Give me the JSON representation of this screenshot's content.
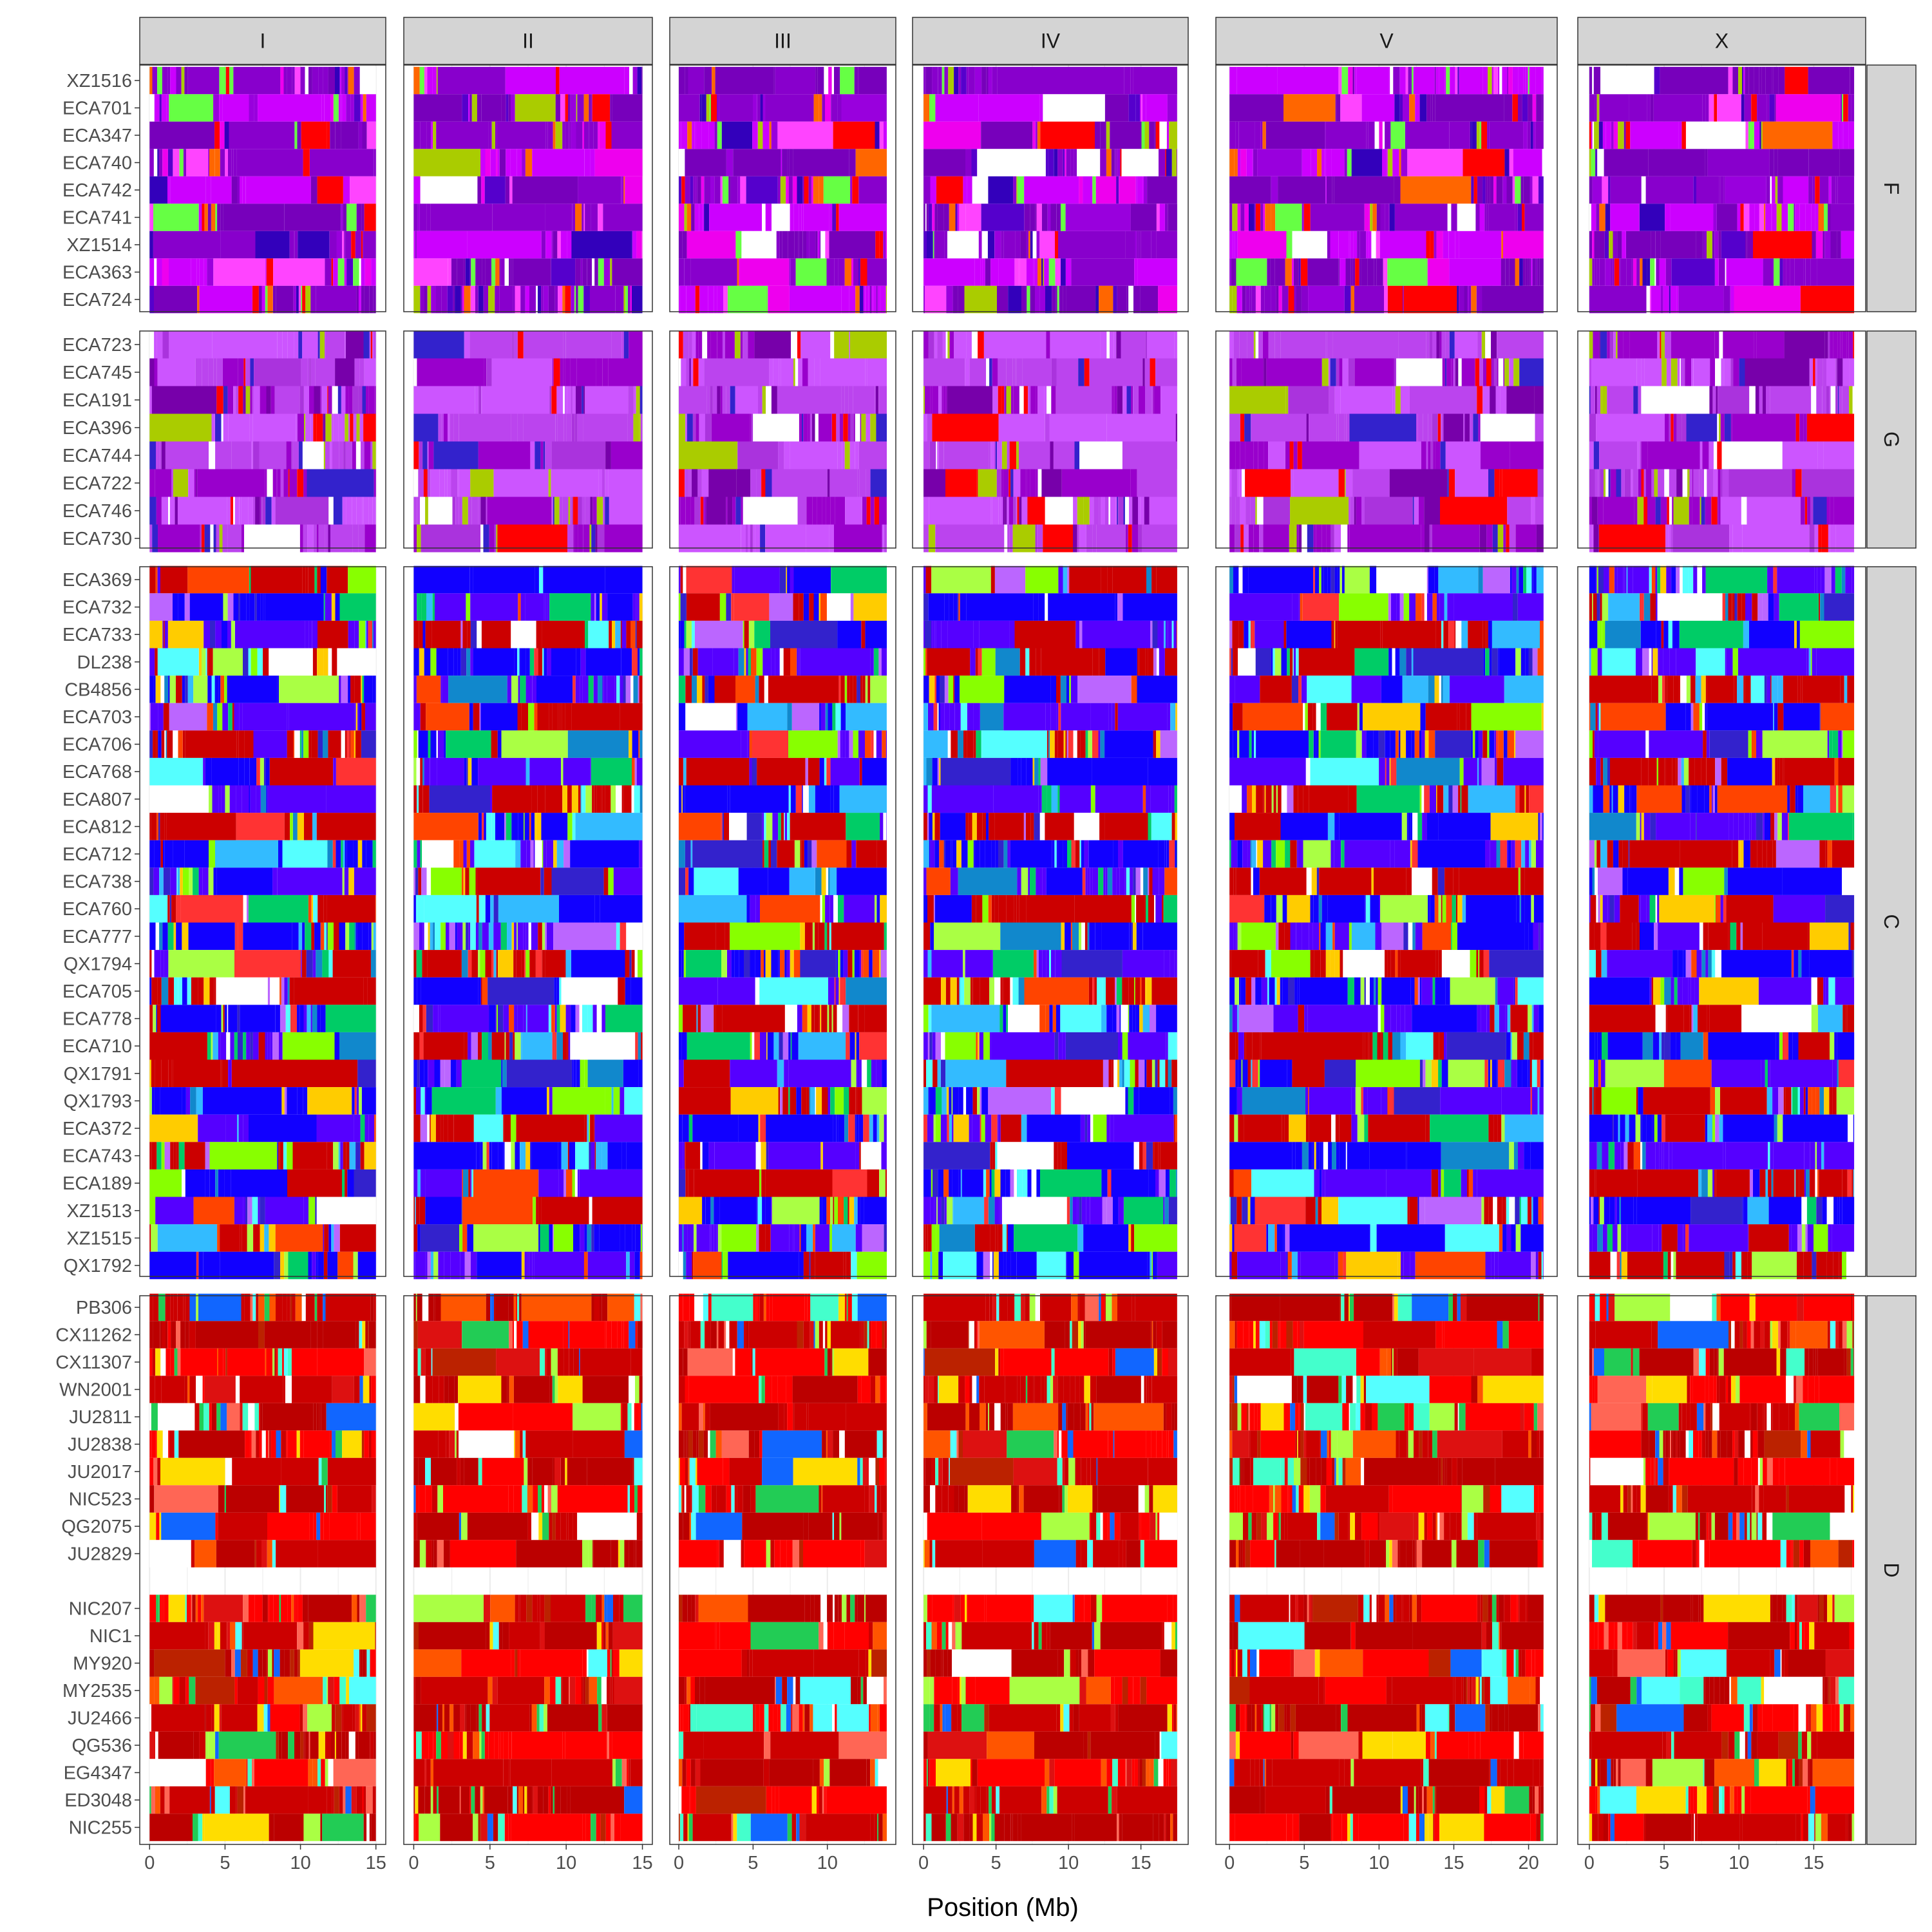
{
  "chart_data": {
    "type": "heatmap",
    "title": "",
    "xlabel": "Position (Mb)",
    "ylabel": "",
    "columns": [
      {
        "label": "I",
        "xlim": [
          0,
          15
        ],
        "ticks": [
          0,
          5,
          10,
          15
        ]
      },
      {
        "label": "II",
        "xlim": [
          0,
          15
        ],
        "ticks": [
          0,
          5,
          10,
          15
        ]
      },
      {
        "label": "III",
        "xlim": [
          0,
          14
        ],
        "ticks": [
          0,
          5,
          10
        ]
      },
      {
        "label": "IV",
        "xlim": [
          0,
          17.5
        ],
        "ticks": [
          0,
          5,
          10,
          15
        ]
      },
      {
        "label": "V",
        "xlim": [
          0,
          21
        ],
        "ticks": [
          0,
          5,
          10,
          15,
          20
        ]
      },
      {
        "label": "X",
        "xlim": [
          0,
          17.7
        ],
        "ticks": [
          0,
          5,
          10,
          15
        ]
      }
    ],
    "rows": [
      {
        "label": "F",
        "strains": [
          "XZ1516",
          "ECA701",
          "ECA347",
          "ECA740",
          "ECA742",
          "ECA741",
          "XZ1514",
          "ECA363",
          "ECA724"
        ]
      },
      {
        "label": "G",
        "strains": [
          "ECA723",
          "ECA745",
          "ECA191",
          "ECA396",
          "ECA744",
          "ECA722",
          "ECA746",
          "ECA730"
        ]
      },
      {
        "label": "C",
        "strains": [
          "ECA369",
          "ECA732",
          "ECA733",
          "DL238",
          "CB4856",
          "ECA703",
          "ECA706",
          "ECA768",
          "ECA807",
          "ECA812",
          "ECA712",
          "ECA738",
          "ECA760",
          "ECA777",
          "QX1794",
          "ECA705",
          "ECA778",
          "ECA710",
          "QX1791",
          "QX1793",
          "ECA372",
          "ECA743",
          "ECA189",
          "XZ1513",
          "XZ1515",
          "QX1792"
        ]
      },
      {
        "label": "D",
        "strains": [
          "PB306",
          "CX11262",
          "CX11307",
          "WN2001",
          "JU2811",
          "JU2838",
          "JU2017",
          "NIC523",
          "QG2075",
          "JU2829",
          "",
          "NIC207",
          "NIC1",
          "MY920",
          "MY2535",
          "JU2466",
          "QG536",
          "EG4347",
          "ED3048",
          "NIC255"
        ]
      }
    ],
    "group_palettes": {
      "F": [
        "#8800cc",
        "#cc00ff",
        "#7700bb",
        "#ee00ee",
        "#9900dd",
        "#5500cc",
        "#ff44ff",
        "#3300bb",
        "#ffffff",
        "#66ff44",
        "#ff0000",
        "#aacc00",
        "#ff6600"
      ],
      "G": [
        "#cc55ff",
        "#bb44ee",
        "#9900cc",
        "#7700aa",
        "#ffffff",
        "#aa33dd",
        "#3322cc",
        "#aacc00",
        "#ff0000"
      ],
      "C": [
        "#cc0000",
        "#1100ff",
        "#5500ff",
        "#55ffff",
        "#aaff44",
        "#00cc66",
        "#ff4400",
        "#33bbff",
        "#ffffff",
        "#bb66ff",
        "#88ff00",
        "#1188cc",
        "#ffcc00",
        "#ff3333",
        "#3322cc"
      ],
      "D": [
        "#cc0000",
        "#bb0000",
        "#ff0000",
        "#ff6655",
        "#dd1111",
        "#bb2200",
        "#ff5500",
        "#aaff44",
        "#44ffcc",
        "#ffdd00",
        "#22cc55",
        "#ffffff",
        "#55ffff",
        "#1166ff"
      ]
    },
    "grid": true,
    "legend": "none"
  }
}
